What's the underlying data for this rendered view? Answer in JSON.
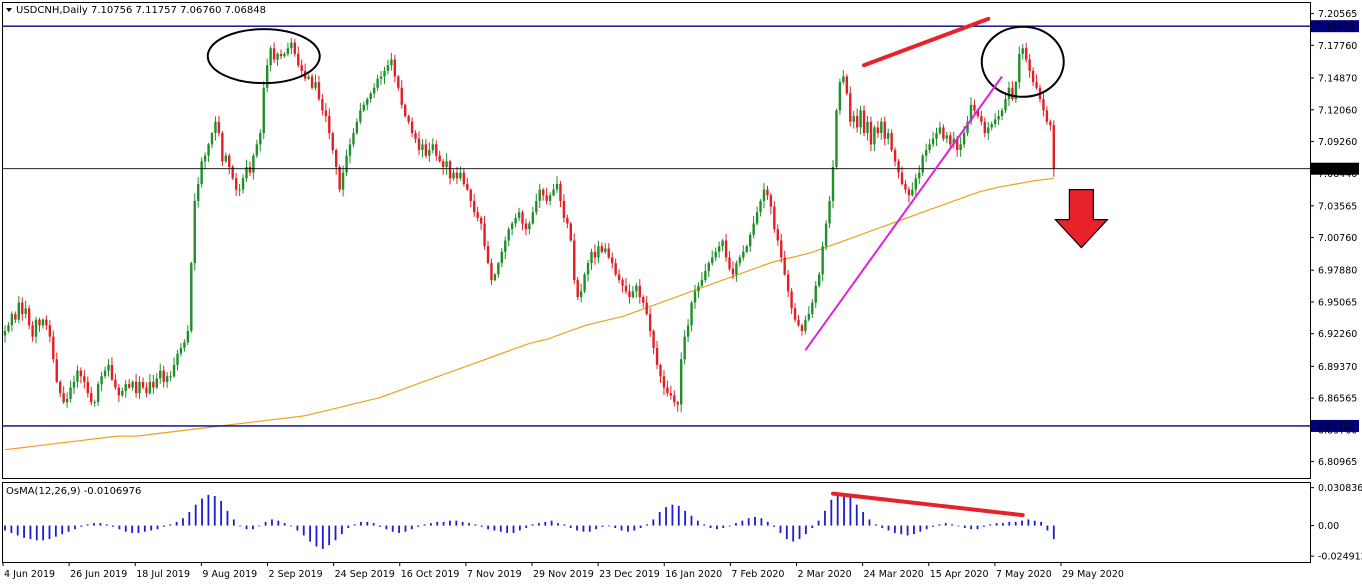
{
  "header": {
    "symbol_line": "USDCNH,Daily  7.10756 7.11757 7.06760 7.06848",
    "indicator_line": "OsMA(12,26,9) -0.0106976"
  },
  "colors": {
    "bull": "#1f8f2a",
    "bear": "#e31e24",
    "ma": "#f0a020",
    "level": "#000080",
    "trend_magenta": "#e020e0",
    "osma": "#1b1bd6",
    "annotation_red": "#e8222a"
  },
  "chart_data": [
    {
      "type": "candlestick",
      "title": "USDCNH,Daily",
      "ohlc_last": {
        "open": "7.10756",
        "high": "7.11757",
        "low": "7.06760",
        "close": "7.06848"
      },
      "ylim": [
        6.795,
        7.215
      ],
      "y_ticks": [
        "7.20565",
        "7.17760",
        "7.14870",
        "7.12060",
        "7.09260",
        "7.06440",
        "7.03565",
        "7.00760",
        "6.97880",
        "6.95065",
        "6.92260",
        "6.89370",
        "6.86565",
        "6.83760",
        "6.80965"
      ],
      "x_ticks": [
        "4 Jun 2019",
        "26 Jun 2019",
        "18 Jul 2019",
        "9 Aug 2019",
        "2 Sep 2019",
        "24 Sep 2019",
        "16 Oct 2019",
        "7 Nov 2019",
        "29 Nov 2019",
        "23 Dec 2019",
        "16 Jan 2020",
        "7 Feb 2020",
        "2 Mar 2020",
        "24 Mar 2020",
        "15 Apr 2020",
        "7 May 2020",
        "29 May 2020"
      ],
      "levels": [
        {
          "value": 7.19451,
          "label": "7.19451"
        },
        {
          "value": 6.84102,
          "label": "6.84102"
        },
        {
          "value": 7.06848,
          "label": "7.06848"
        }
      ],
      "closes": [
        6.925,
        6.93,
        6.94,
        6.935,
        6.95,
        6.94,
        6.945,
        6.93,
        6.92,
        6.935,
        6.93,
        6.935,
        6.93,
        6.92,
        6.9,
        6.88,
        6.87,
        6.862,
        6.865,
        6.875,
        6.88,
        6.89,
        6.885,
        6.88,
        6.87,
        6.862,
        6.862,
        6.878,
        6.885,
        6.89,
        6.895,
        6.882,
        6.875,
        6.868,
        6.872,
        6.878,
        6.875,
        6.88,
        6.87,
        6.88,
        6.875,
        6.87,
        6.88,
        6.875,
        6.883,
        6.89,
        6.88,
        6.885,
        6.885,
        6.895,
        6.905,
        6.91,
        6.915,
        6.925,
        6.985,
        7.04,
        7.055,
        7.075,
        7.08,
        7.09,
        7.1,
        7.11,
        7.1,
        7.075,
        7.08,
        7.07,
        7.06,
        7.05,
        7.05,
        7.06,
        7.07,
        7.065,
        7.08,
        7.09,
        7.1,
        7.14,
        7.16,
        7.175,
        7.165,
        7.17,
        7.168,
        7.17,
        7.175,
        7.18,
        7.17,
        7.16,
        7.155,
        7.148,
        7.15,
        7.14,
        7.145,
        7.13,
        7.12,
        7.115,
        7.1,
        7.085,
        7.07,
        7.05,
        7.065,
        7.08,
        7.09,
        7.1,
        7.11,
        7.12,
        7.125,
        7.13,
        7.135,
        7.14,
        7.148,
        7.15,
        7.155,
        7.16,
        7.165,
        7.15,
        7.14,
        7.125,
        7.115,
        7.11,
        7.1,
        7.095,
        7.085,
        7.09,
        7.08,
        7.085,
        7.09,
        7.08,
        7.075,
        7.07,
        7.075,
        7.06,
        7.065,
        7.06,
        7.065,
        7.055,
        7.05,
        7.04,
        7.03,
        7.025,
        7.02,
        7,
        6.985,
        6.97,
        6.975,
        6.985,
        6.995,
        7.005,
        7.015,
        7.02,
        7.025,
        7.03,
        7.02,
        7.015,
        7.02,
        7.03,
        7.04,
        7.05,
        7.045,
        7.04,
        7.045,
        7.05,
        7.055,
        7.04,
        7.025,
        7.02,
        7.005,
        6.97,
        6.955,
        6.96,
        6.975,
        6.985,
        6.995,
        6.99,
        7,
        6.995,
        6.998,
        6.99,
        6.985,
        6.975,
        6.97,
        6.965,
        6.96,
        6.955,
        6.96,
        6.965,
        6.955,
        6.95,
        6.94,
        6.925,
        6.91,
        6.895,
        6.885,
        6.875,
        6.87,
        6.868,
        6.862,
        6.86,
        6.9,
        6.92,
        6.93,
        6.95,
        6.96,
        6.965,
        6.97,
        6.978,
        6.985,
        6.99,
        6.995,
        7,
        7.005,
        6.99,
        6.98,
        6.975,
        6.985,
        6.99,
        6.995,
        7,
        7.01,
        7.02,
        7.03,
        7.04,
        7.05,
        7.045,
        7.035,
        7.015,
        7.005,
        6.99,
        6.975,
        6.96,
        6.945,
        6.935,
        6.93,
        6.925,
        6.935,
        6.94,
        6.95,
        6.965,
        6.975,
        7,
        7.02,
        7.04,
        7.07,
        7.12,
        7.145,
        7.15,
        7.135,
        7.11,
        7.115,
        7.105,
        7.12,
        7.1,
        7.11,
        7.09,
        7.105,
        7.1,
        7.11,
        7.095,
        7.1,
        7.085,
        7.075,
        7.065,
        7.055,
        7.05,
        7.045,
        7.05,
        7.06,
        7.065,
        7.08,
        7.085,
        7.09,
        7.095,
        7.1,
        7.105,
        7.095,
        7.098,
        7.09,
        7.095,
        7.085,
        7.09,
        7.1,
        7.11,
        7.125,
        7.12,
        7.115,
        7.11,
        7.1,
        7.105,
        7.108,
        7.112,
        7.115,
        7.12,
        7.13,
        7.14,
        7.13,
        7.145,
        7.17,
        7.175,
        7.165,
        7.155,
        7.145,
        7.14,
        7.13,
        7.12,
        7.11,
        7.107,
        7.068
      ],
      "ma_period": 200,
      "ma_values": [
        6.82,
        6.822,
        6.824,
        6.826,
        6.828,
        6.83,
        6.832,
        6.832,
        6.834,
        6.836,
        6.838,
        6.84,
        6.842,
        6.844,
        6.846,
        6.848,
        6.85,
        6.854,
        6.858,
        6.862,
        6.866,
        6.872,
        6.878,
        6.884,
        6.89,
        6.896,
        6.902,
        6.908,
        6.914,
        6.918,
        6.924,
        6.93,
        6.934,
        6.938,
        6.944,
        6.95,
        6.956,
        6.962,
        6.968,
        6.974,
        6.98,
        6.986,
        6.99,
        6.994,
        7,
        7.006,
        7.012,
        7.018,
        7.024,
        7.03,
        7.036,
        7.042,
        7.048,
        7.052,
        7.055,
        7.058,
        7.06
      ],
      "annotations": [
        {
          "type": "ellipse",
          "note": "top circle Aug-Sep 2019"
        },
        {
          "type": "ellipse",
          "note": "top circle May 2020"
        },
        {
          "type": "line",
          "color": "red",
          "from": [
            249,
            7.16
          ],
          "to": [
            285,
            7.201
          ]
        },
        {
          "type": "line",
          "color": "magenta",
          "from": [
            232,
            6.908
          ],
          "to": [
            289,
            7.15
          ]
        },
        {
          "type": "arrow",
          "direction": "down"
        }
      ]
    },
    {
      "type": "histogram",
      "title": "OsMA(12,26,9)",
      "value": "-0.0106976",
      "ylim": [
        -0.028,
        0.033
      ],
      "y_ticks": [
        "0.0308365",
        "0.00",
        "-0.024912"
      ],
      "values": [
        -0.004,
        -0.006,
        -0.008,
        -0.01,
        -0.011,
        -0.012,
        -0.012,
        -0.011,
        -0.009,
        -0.007,
        -0.005,
        -0.003,
        -0.001,
        0.001,
        0.002,
        0.002,
        0.001,
        -0.001,
        -0.003,
        -0.005,
        -0.006,
        -0.006,
        -0.005,
        -0.004,
        -0.003,
        -0.001,
        0.001,
        0.003,
        0.006,
        0.011,
        0.017,
        0.022,
        0.025,
        0.024,
        0.02,
        0.012,
        0.005,
        0,
        -0.003,
        -0.003,
        0,
        0.003,
        0.005,
        0.004,
        0.002,
        0,
        -0.004,
        -0.008,
        -0.013,
        -0.017,
        -0.019,
        -0.016,
        -0.012,
        -0.007,
        -0.002,
        0.001,
        0.003,
        0.003,
        0.002,
        -0.001,
        -0.003,
        -0.005,
        -0.006,
        -0.005,
        -0.003,
        -0.001,
        0.001,
        0.002,
        0.003,
        0.003,
        0.004,
        0.004,
        0.003,
        0.002,
        0.001,
        -0.001,
        -0.003,
        -0.004,
        -0.005,
        -0.006,
        -0.006,
        -0.004,
        -0.002,
        0.001,
        0.002,
        0.003,
        0.004,
        0.002,
        0.001,
        -0.002,
        -0.004,
        -0.005,
        -0.005,
        -0.003,
        -0.001,
        0,
        -0.002,
        -0.004,
        -0.005,
        -0.004,
        -0.002,
        0.001,
        0.005,
        0.011,
        0.015,
        0.017,
        0.016,
        0.012,
        0.008,
        0.004,
        0.001,
        -0.002,
        -0.003,
        -0.002,
        0,
        0.002,
        0.004,
        0.006,
        0.007,
        0.006,
        0.003,
        -0.001,
        -0.006,
        -0.011,
        -0.013,
        -0.011,
        -0.007,
        -0.002,
        0.004,
        0.012,
        0.021,
        0.025,
        0.026,
        0.023,
        0.017,
        0.011,
        0.005,
        0.001,
        -0.002,
        -0.004,
        -0.006,
        -0.007,
        -0.008,
        -0.007,
        -0.005,
        -0.003,
        -0.001,
        0.001,
        0.002,
        0.001,
        0,
        -0.002,
        -0.003,
        -0.003,
        -0.001,
        0.001,
        0.002,
        0.002,
        0.003,
        0.003,
        0.004,
        0.005,
        0.004,
        0.003,
        -0.004,
        -0.011
      ]
    }
  ]
}
